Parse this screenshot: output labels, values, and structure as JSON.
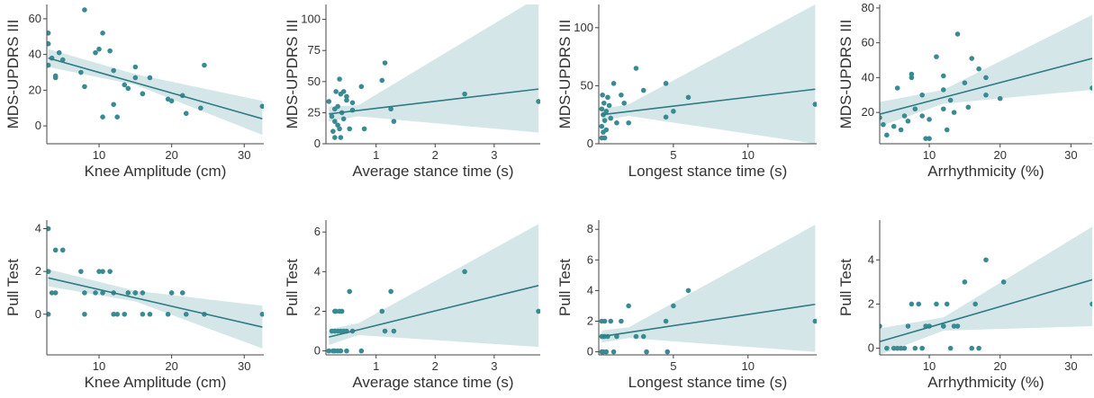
{
  "chart_data": [
    {
      "type": "scatter",
      "xlabel": "Knee Amplitude (cm)",
      "ylabel": "MDS-UPDRS III",
      "xlim": [
        2.8,
        32.7
      ],
      "ylim": [
        -10,
        68
      ],
      "xticks": [
        10,
        20,
        30
      ],
      "yticks": [
        0,
        20,
        40,
        60
      ],
      "point_color": "#3a8a94",
      "line_color": "#2e7a85",
      "band_color": "#d4e6e8",
      "x": [
        3,
        3,
        3,
        3.5,
        4,
        4,
        4.5,
        5,
        7.5,
        8,
        8,
        9.5,
        10,
        10.5,
        10.5,
        11.5,
        12,
        12,
        12.5,
        13.5,
        14,
        15,
        15,
        16,
        16,
        17,
        19.5,
        20,
        21.5,
        22,
        24,
        24.5,
        32.5
      ],
      "y": [
        46,
        52,
        34,
        38,
        28,
        27,
        41,
        37,
        30,
        65,
        22,
        41,
        43,
        52,
        5,
        42,
        12,
        31,
        5,
        23,
        21,
        33,
        27,
        18,
        18,
        27,
        15,
        14,
        17,
        7,
        10,
        34,
        11
      ],
      "fit": {
        "x": [
          3,
          32.5
        ],
        "y": [
          38,
          4
        ]
      },
      "band": {
        "x": [
          3,
          15,
          32.5
        ],
        "lower": [
          33,
          23,
          -5
        ],
        "upper": [
          43,
          29,
          14
        ]
      }
    },
    {
      "type": "scatter",
      "xlabel": "Average stance time (s)",
      "ylabel": "MDS-UPDRS III",
      "xlim": [
        0.15,
        3.78
      ],
      "ylim": [
        0,
        112
      ],
      "xticks": [
        1,
        2,
        3
      ],
      "yticks": [
        0,
        25,
        50,
        75,
        100
      ],
      "point_color": "#3a8a94",
      "line_color": "#2e7a85",
      "band_color": "#d4e6e8",
      "x": [
        0.2,
        0.25,
        0.27,
        0.3,
        0.3,
        0.3,
        0.32,
        0.35,
        0.35,
        0.38,
        0.38,
        0.4,
        0.4,
        0.42,
        0.45,
        0.45,
        0.5,
        0.5,
        0.55,
        0.6,
        0.6,
        0.75,
        0.8,
        1.1,
        1.15,
        1.25,
        1.3,
        2.5,
        3.75
      ],
      "y": [
        34,
        22,
        10,
        5,
        18,
        28,
        42,
        15,
        30,
        52,
        12,
        40,
        5,
        25,
        42,
        20,
        35,
        38,
        12,
        33,
        27,
        46,
        12,
        51,
        65,
        28,
        18,
        40,
        34
      ],
      "fit": {
        "x": [
          0.2,
          3.75
        ],
        "y": [
          24,
          44
        ]
      },
      "band": {
        "x": [
          0.2,
          0.7,
          3.75
        ],
        "lower": [
          18,
          22,
          9
        ],
        "upper": [
          30,
          31,
          118
        ]
      }
    },
    {
      "type": "scatter",
      "xlabel": "Longest stance time (s)",
      "ylabel": "MDS-UPDRS III",
      "xlim": [
        0,
        14.6
      ],
      "ylim": [
        0,
        120
      ],
      "xticks": [
        5,
        10
      ],
      "yticks": [
        0,
        50,
        100
      ],
      "point_color": "#3a8a94",
      "line_color": "#2e7a85",
      "band_color": "#d4e6e8",
      "x": [
        0.2,
        0.2,
        0.2,
        0.25,
        0.3,
        0.3,
        0.35,
        0.4,
        0.4,
        0.5,
        0.5,
        0.6,
        0.7,
        0.8,
        1,
        1.2,
        1.5,
        1.7,
        2,
        2.5,
        3,
        4.5,
        4.5,
        5,
        6,
        14.5
      ],
      "y": [
        5,
        15,
        30,
        42,
        25,
        10,
        35,
        20,
        5,
        28,
        12,
        40,
        33,
        22,
        52,
        18,
        42,
        35,
        18,
        65,
        46,
        52,
        23,
        28,
        40,
        34
      ],
      "fit": {
        "x": [
          0.2,
          14.5
        ],
        "y": [
          25,
          47
        ]
      },
      "band": {
        "x": [
          0.2,
          2,
          14.5
        ],
        "lower": [
          20,
          24,
          0
        ],
        "upper": [
          30,
          34,
          120
        ]
      }
    },
    {
      "type": "scatter",
      "xlabel": "Arrhythmicity (%)",
      "ylabel": "MDS-UPDRS III",
      "xlim": [
        3,
        33
      ],
      "ylim": [
        2,
        82
      ],
      "xticks": [
        10,
        20,
        30
      ],
      "yticks": [
        20,
        40,
        60,
        80
      ],
      "point_color": "#3a8a94",
      "line_color": "#2e7a85",
      "band_color": "#d4e6e8",
      "x": [
        3,
        3.5,
        4,
        5,
        5.5,
        6,
        6.5,
        7,
        7.5,
        7.5,
        8,
        9,
        9,
        9.5,
        10,
        10,
        11,
        12,
        12,
        12,
        12.5,
        13,
        13.5,
        14,
        15,
        15.5,
        16,
        17,
        18,
        18,
        20,
        33
      ],
      "y": [
        17,
        13,
        7,
        12,
        34,
        10,
        18,
        15,
        42,
        40,
        22,
        30,
        18,
        5,
        5,
        16,
        52,
        41,
        33,
        22,
        10,
        27,
        20,
        65,
        37,
        23,
        51,
        45,
        40,
        30,
        28,
        34
      ],
      "fit": {
        "x": [
          3,
          33
        ],
        "y": [
          19,
          51
        ]
      },
      "band": {
        "x": [
          3,
          12,
          33
        ],
        "lower": [
          12,
          25,
          33
        ],
        "upper": [
          26,
          33,
          76
        ]
      }
    },
    {
      "type": "scatter",
      "xlabel": "Knee Amplitude (cm)",
      "ylabel": "Pull Test",
      "xlim": [
        2.8,
        32.7
      ],
      "ylim": [
        -1.9,
        4.4
      ],
      "xticks": [
        10,
        20,
        30
      ],
      "yticks": [
        0,
        2,
        4
      ],
      "point_color": "#3a8a94",
      "line_color": "#2e7a85",
      "band_color": "#d4e6e8",
      "x": [
        3,
        3,
        3,
        3,
        3.5,
        4,
        4,
        5,
        7.5,
        8,
        8,
        9.5,
        10,
        10.5,
        10.5,
        11.5,
        12,
        12,
        12.5,
        13.5,
        14,
        15,
        15,
        16,
        16,
        17,
        19.5,
        20,
        21.5,
        22,
        24.5,
        32.5
      ],
      "y": [
        4,
        2,
        2,
        0,
        1,
        3,
        1,
        3,
        2,
        1,
        0,
        1,
        2,
        2,
        1,
        2,
        0,
        1,
        0,
        0,
        1,
        1,
        1,
        1,
        0,
        0,
        0,
        1,
        1,
        0,
        0,
        0
      ],
      "fit": {
        "x": [
          3,
          32.5
        ],
        "y": [
          1.7,
          -0.6
        ]
      },
      "band": {
        "x": [
          3,
          15,
          32.5
        ],
        "lower": [
          1.3,
          0.6,
          -1.6
        ],
        "upper": [
          2.1,
          1.1,
          0.4
        ]
      }
    },
    {
      "type": "scatter",
      "xlabel": "Average stance time (s)",
      "ylabel": "Pull Test",
      "xlim": [
        0.15,
        3.78
      ],
      "ylim": [
        -0.2,
        6.6
      ],
      "xticks": [
        1,
        2,
        3
      ],
      "yticks": [
        0,
        2,
        4,
        6
      ],
      "point_color": "#3a8a94",
      "line_color": "#2e7a85",
      "band_color": "#d4e6e8",
      "x": [
        0.2,
        0.25,
        0.27,
        0.3,
        0.3,
        0.3,
        0.32,
        0.35,
        0.35,
        0.38,
        0.4,
        0.4,
        0.42,
        0.45,
        0.5,
        0.5,
        0.55,
        0.6,
        0.75,
        1.1,
        1.15,
        1.25,
        1.3,
        2.5,
        3.75
      ],
      "y": [
        0,
        1,
        0,
        2,
        1,
        0,
        2,
        1,
        0,
        2,
        1,
        0,
        2,
        1,
        1,
        0,
        3,
        1,
        0,
        2,
        1,
        3,
        1,
        4,
        2
      ],
      "fit": {
        "x": [
          0.2,
          3.75
        ],
        "y": [
          0.7,
          3.3
        ]
      },
      "band": {
        "x": [
          0.2,
          0.7,
          3.75
        ],
        "lower": [
          0.3,
          0.8,
          0.2
        ],
        "upper": [
          1.1,
          1.4,
          6.4
        ]
      }
    },
    {
      "type": "scatter",
      "xlabel": "Longest stance time (s)",
      "ylabel": "Pull Test",
      "xlim": [
        0,
        14.6
      ],
      "ylim": [
        -0.2,
        8.6
      ],
      "xticks": [
        5,
        10
      ],
      "yticks": [
        0,
        2,
        4,
        6,
        8
      ],
      "point_color": "#3a8a94",
      "line_color": "#2e7a85",
      "band_color": "#d4e6e8",
      "x": [
        0.2,
        0.2,
        0.2,
        0.3,
        0.3,
        0.4,
        0.4,
        0.5,
        0.6,
        0.8,
        1,
        1.2,
        1.5,
        2,
        2.5,
        3,
        3.2,
        4.5,
        4.6,
        5,
        6,
        14.5
      ],
      "y": [
        0,
        1,
        2,
        1,
        0,
        2,
        1,
        0,
        1,
        2,
        0,
        1,
        2,
        3,
        1,
        1,
        0,
        2,
        0,
        3,
        4,
        2
      ],
      "fit": {
        "x": [
          0.2,
          14.5
        ],
        "y": [
          1,
          3.1
        ]
      },
      "band": {
        "x": [
          0.2,
          2,
          14.5
        ],
        "lower": [
          0.6,
          0.9,
          0
        ],
        "upper": [
          1.4,
          1.6,
          8.3
        ]
      }
    },
    {
      "type": "scatter",
      "xlabel": "Arrhythmicity (%)",
      "ylabel": "Pull Test",
      "xlim": [
        3,
        33
      ],
      "ylim": [
        -0.3,
        5.8
      ],
      "xticks": [
        10,
        20,
        30
      ],
      "yticks": [
        0,
        2,
        4
      ],
      "point_color": "#3a8a94",
      "line_color": "#2e7a85",
      "band_color": "#d4e6e8",
      "x": [
        3,
        4,
        5,
        5.5,
        6,
        6.5,
        7,
        7.5,
        8,
        8.5,
        9,
        9.5,
        10,
        11,
        12,
        12,
        12.5,
        13,
        13.5,
        14,
        15,
        16,
        16.5,
        17,
        18,
        20.5,
        33
      ],
      "y": [
        1,
        0,
        0,
        0,
        0,
        0,
        1,
        2,
        0,
        2,
        0,
        1,
        1,
        2,
        1,
        1,
        2,
        0,
        1,
        1,
        3,
        0,
        2,
        0,
        4,
        3,
        2
      ],
      "fit": {
        "x": [
          3,
          33
        ],
        "y": [
          0.3,
          3.1
        ]
      },
      "band": {
        "x": [
          3,
          12,
          33
        ],
        "lower": [
          -0.3,
          0.8,
          1.0
        ],
        "upper": [
          0.9,
          1.4,
          5.5
        ]
      }
    }
  ]
}
